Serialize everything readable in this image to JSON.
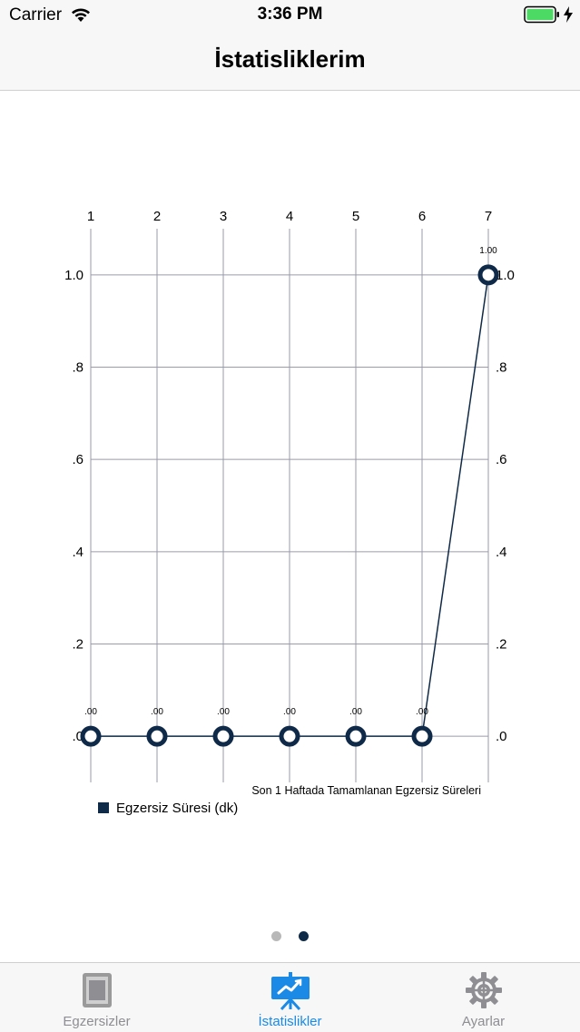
{
  "status_bar": {
    "carrier": "Carrier",
    "time": "3:36 PM"
  },
  "nav": {
    "title": "İstatisliklerim"
  },
  "chart_data": {
    "type": "line",
    "x": [
      1,
      2,
      3,
      4,
      5,
      6,
      7
    ],
    "x_tick_labels": [
      "1",
      "2",
      "3",
      "4",
      "5",
      "6",
      "7"
    ],
    "series": [
      {
        "name": "Egzersiz Süresi (dk)",
        "values": [
          0,
          0,
          0,
          0,
          0,
          0,
          1
        ],
        "value_labels": [
          ".00",
          ".00",
          ".00",
          ".00",
          ".00",
          ".00",
          "1.00"
        ]
      }
    ],
    "y_ticks": [
      0,
      0.2,
      0.4,
      0.6,
      0.8,
      1.0
    ],
    "y_tick_labels": [
      ".0",
      ".2",
      ".4",
      ".6",
      ".8",
      "1.0"
    ],
    "ylim": [
      -0.1,
      1.1
    ],
    "description": "Son 1 Haftada Tamamlanan Egzersiz Süreleri",
    "legend_label": "Egzersiz Süresi (dk)",
    "grid": true,
    "series_color": "#0e2a48"
  },
  "page_indicator": {
    "count": 2,
    "active": 2
  },
  "tabs": [
    {
      "label": "Egzersizler",
      "icon": "list-icon",
      "active": false
    },
    {
      "label": "İstatislikler",
      "icon": "chart-presentation-icon",
      "active": true
    },
    {
      "label": "Ayarlar",
      "icon": "gear-icon",
      "active": false
    }
  ],
  "colors": {
    "accent": "#1a8ae6",
    "inactive": "#8e8e93",
    "series": "#0e2a48"
  }
}
